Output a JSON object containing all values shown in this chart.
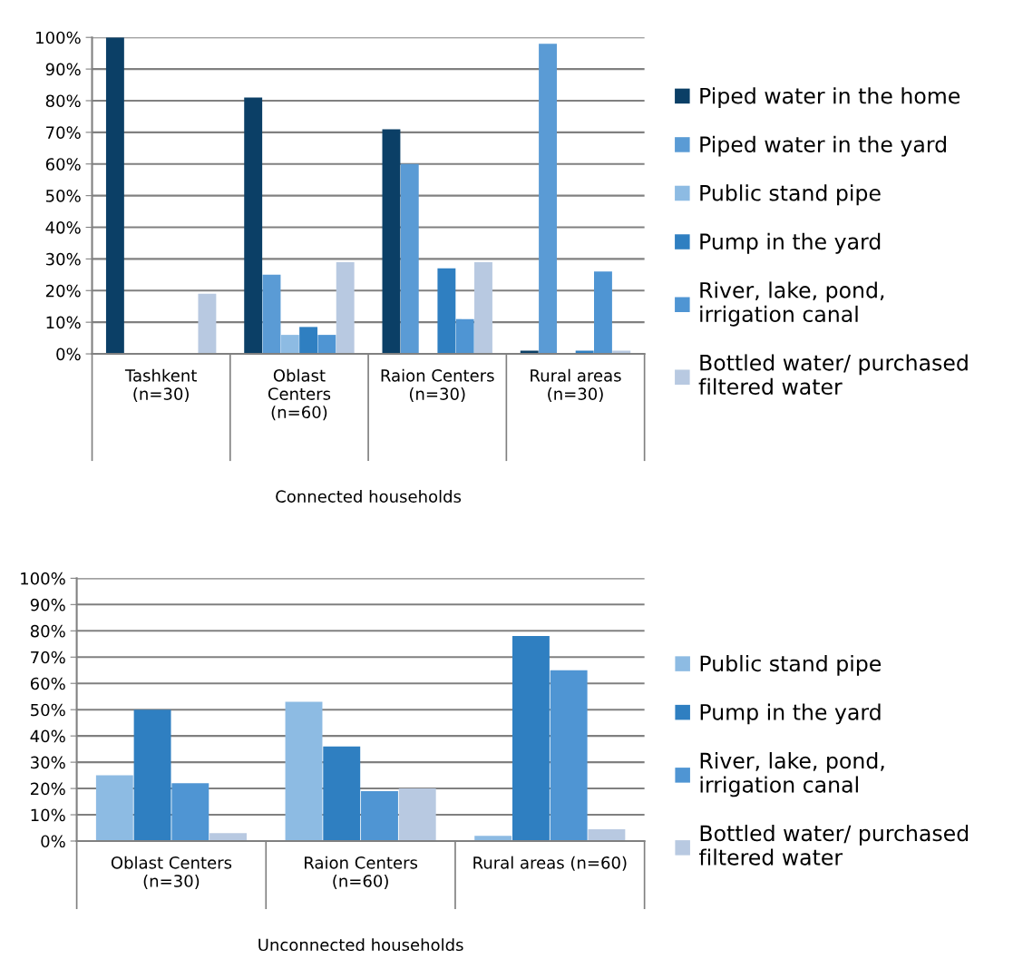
{
  "chart_data": [
    {
      "type": "bar",
      "categories": [
        "Tashkent\n(n=30)",
        "Oblast\nCenters\n(n=60)",
        "Raion Centers\n(n=30)",
        "Rural areas\n(n=30)"
      ],
      "xlabel": "Connected households",
      "ylim": [
        0,
        100
      ],
      "yticks": [
        {
          "value": 0,
          "label": "0%"
        },
        {
          "value": 10,
          "label": "10%"
        },
        {
          "value": 20,
          "label": "20%"
        },
        {
          "value": 30,
          "label": "30%"
        },
        {
          "value": 40,
          "label": "40%"
        },
        {
          "value": 50,
          "label": "50%"
        },
        {
          "value": 60,
          "label": "60%"
        },
        {
          "value": 70,
          "label": "70%"
        },
        {
          "value": 80,
          "label": "80%"
        },
        {
          "value": 90,
          "label": "90%"
        },
        {
          "value": 100,
          "label": "100%"
        }
      ],
      "grid": "y",
      "legend": "right",
      "series": [
        {
          "name": "Piped water in the home",
          "color": "#0b3f66",
          "values": [
            100,
            81,
            71,
            1
          ]
        },
        {
          "name": "Piped water in the yard",
          "color": "#5a9bd5",
          "values": [
            0,
            25,
            60,
            98
          ]
        },
        {
          "name": "Public stand pipe",
          "color": "#8dbbe3",
          "values": [
            0,
            6,
            0,
            0
          ]
        },
        {
          "name": "Pump in the yard",
          "color": "#2f7fc1",
          "values": [
            0,
            8.5,
            27,
            1
          ]
        },
        {
          "name": "River, lake, pond,\nirrigation canal",
          "color": "#4f95d3",
          "values": [
            0,
            6,
            11,
            26
          ]
        },
        {
          "name": "Bottled water/ purchased\nfiltered water",
          "color": "#b8c9e1",
          "values": [
            19,
            29,
            29,
            1
          ]
        }
      ]
    },
    {
      "type": "bar",
      "categories": [
        "Oblast Centers\n(n=30)",
        "Raion Centers\n(n=60)",
        "Rural areas (n=60)"
      ],
      "xlabel": "Unconnected households",
      "ylim": [
        0,
        100
      ],
      "yticks": [
        {
          "value": 0,
          "label": "0%"
        },
        {
          "value": 10,
          "label": "10%"
        },
        {
          "value": 20,
          "label": "20%"
        },
        {
          "value": 30,
          "label": "30%"
        },
        {
          "value": 40,
          "label": "40%"
        },
        {
          "value": 50,
          "label": "50%"
        },
        {
          "value": 60,
          "label": "60%"
        },
        {
          "value": 70,
          "label": "70%"
        },
        {
          "value": 80,
          "label": "80%"
        },
        {
          "value": 90,
          "label": "90%"
        },
        {
          "value": 100,
          "label": "100%"
        }
      ],
      "grid": "y",
      "legend": "right",
      "series": [
        {
          "name": "Public stand pipe",
          "color": "#8dbbe3",
          "values": [
            25,
            53,
            2
          ]
        },
        {
          "name": "Pump in the yard",
          "color": "#2f7fc1",
          "values": [
            50,
            36,
            78
          ]
        },
        {
          "name": "River, lake, pond,\nirrigation canal",
          "color": "#4f95d3",
          "values": [
            22,
            19,
            65
          ]
        },
        {
          "name": "Bottled water/ purchased\nfiltered water",
          "color": "#b8c9e1",
          "values": [
            3,
            20,
            4.5
          ]
        }
      ]
    }
  ]
}
